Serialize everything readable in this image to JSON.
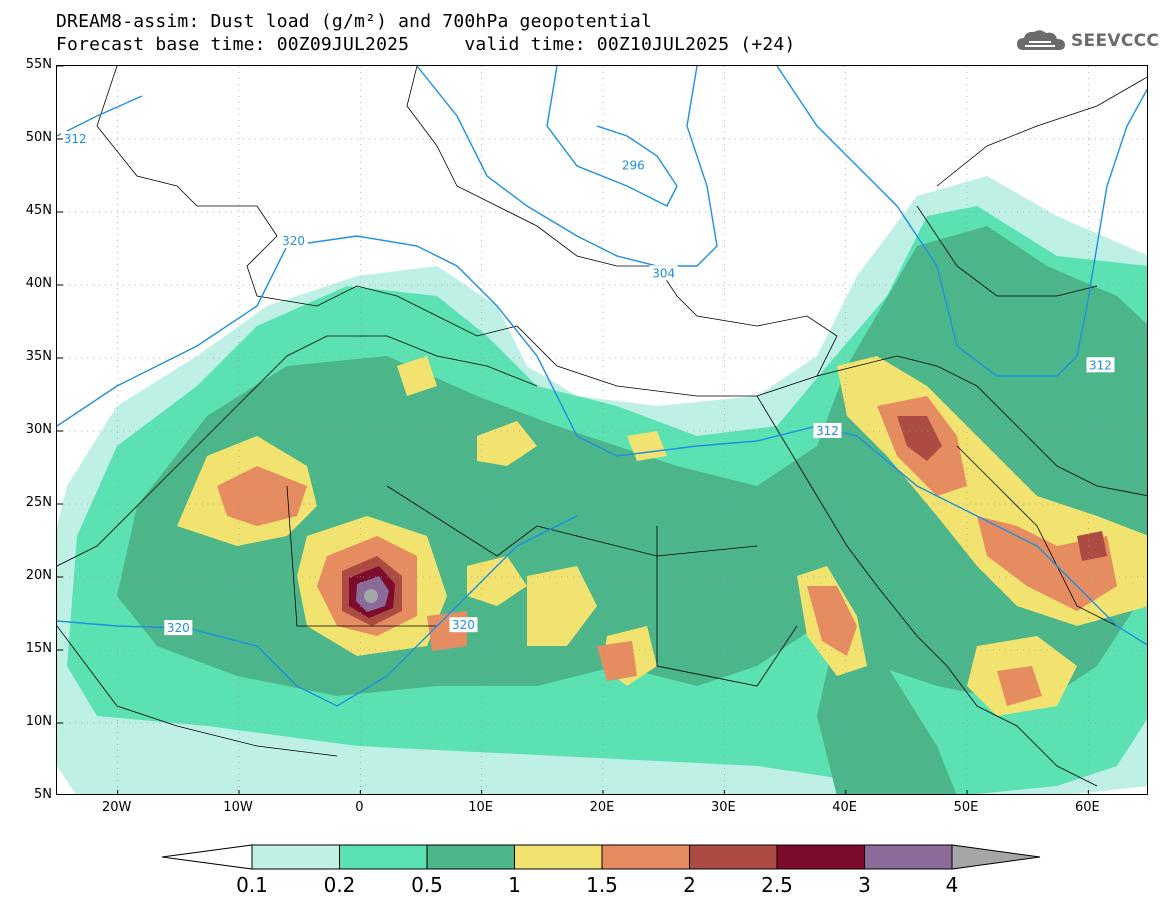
{
  "header": {
    "title_line1": "DREAM8-assim: Dust load (g/m²) and 700hPa geopotential",
    "title_line2": "Forecast base time: 00Z09JUL2025     valid time: 00Z10JUL2025 (+24)",
    "logo_text": "SEEVCCC",
    "logo_icon": "cloud-icon"
  },
  "map": {
    "lon_range": [
      -25,
      65
    ],
    "lat_range": [
      5,
      55
    ],
    "lat_labels": [
      "55N",
      "50N",
      "45N",
      "40N",
      "35N",
      "30N",
      "25N",
      "20N",
      "15N",
      "10N",
      "5N"
    ],
    "lat_values": [
      55,
      50,
      45,
      40,
      35,
      30,
      25,
      20,
      15,
      10,
      5
    ],
    "lon_labels": [
      "20W",
      "10W",
      "0",
      "10E",
      "20E",
      "30E",
      "40E",
      "50E",
      "60E"
    ],
    "lon_values": [
      -20,
      -10,
      0,
      10,
      20,
      30,
      40,
      50,
      60
    ],
    "contour_labels": [
      {
        "text": "312",
        "lon": -23.5,
        "lat": 50.0
      },
      {
        "text": "320",
        "lon": -5.5,
        "lat": 43.0
      },
      {
        "text": "296",
        "lon": 22.5,
        "lat": 48.2
      },
      {
        "text": "304",
        "lon": 25.0,
        "lat": 40.8
      },
      {
        "text": "312",
        "lon": 38.5,
        "lat": 30.0
      },
      {
        "text": "312",
        "lon": 61.0,
        "lat": 34.5
      },
      {
        "text": "320",
        "lon": -15.0,
        "lat": 16.5
      },
      {
        "text": "320",
        "lon": 8.5,
        "lat": 16.7
      }
    ]
  },
  "legend": {
    "labels": [
      "0.1",
      "0.2",
      "0.5",
      "1",
      "1.5",
      "2",
      "2.5",
      "3",
      "4"
    ],
    "colors": [
      "#bff0e6",
      "#5ce2b2",
      "#4cb68a",
      "#f2e370",
      "#e58c61",
      "#ab4b41",
      "#7c0b2c",
      "#8a6b9a",
      "#a6a6a6"
    ],
    "open_end_color": "#ffffff"
  }
}
